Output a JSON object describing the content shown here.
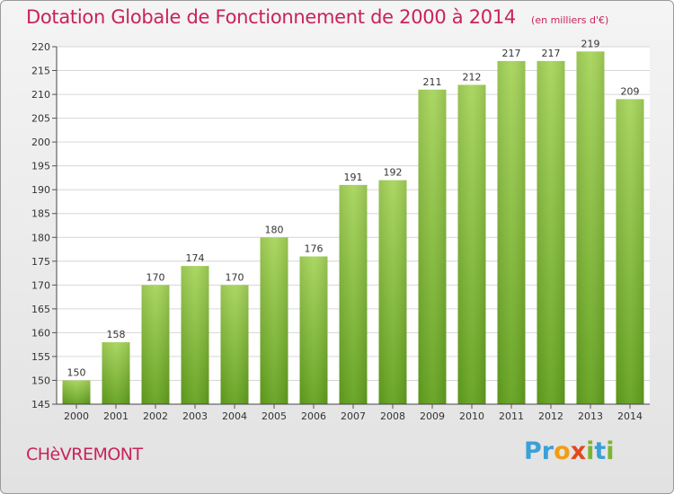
{
  "title": "Dotation Globale de Fonctionnement de 2000 à 2014",
  "subtitle": "(en milliers d'€)",
  "commune": "CHèVREMONT",
  "logo": {
    "letters": [
      "P",
      "r",
      "o",
      "x",
      "i",
      "t",
      "i"
    ],
    "colors": [
      "#3aa0d8",
      "#3aa0d8",
      "#f39c12",
      "#e24a1b",
      "#7ab52f",
      "#3aa0d8",
      "#7ab52f"
    ]
  },
  "colors": {
    "accent": "#c8235a",
    "bar_top": "#a6d45a",
    "bar_bottom": "#62a11d"
  },
  "chart_data": {
    "type": "bar",
    "categories": [
      "2000",
      "2001",
      "2002",
      "2003",
      "2004",
      "2005",
      "2006",
      "2007",
      "2008",
      "2009",
      "2010",
      "2011",
      "2012",
      "2013",
      "2014"
    ],
    "values": [
      150,
      158,
      170,
      174,
      170,
      180,
      176,
      191,
      192,
      211,
      212,
      217,
      217,
      219,
      209
    ],
    "ylim": [
      145,
      220
    ],
    "yticks": [
      145,
      150,
      155,
      160,
      165,
      170,
      175,
      180,
      185,
      190,
      195,
      200,
      205,
      210,
      215,
      220
    ],
    "grid": true,
    "title": "Dotation Globale de Fonctionnement de 2000 à 2014",
    "xlabel": "",
    "ylabel": ""
  }
}
